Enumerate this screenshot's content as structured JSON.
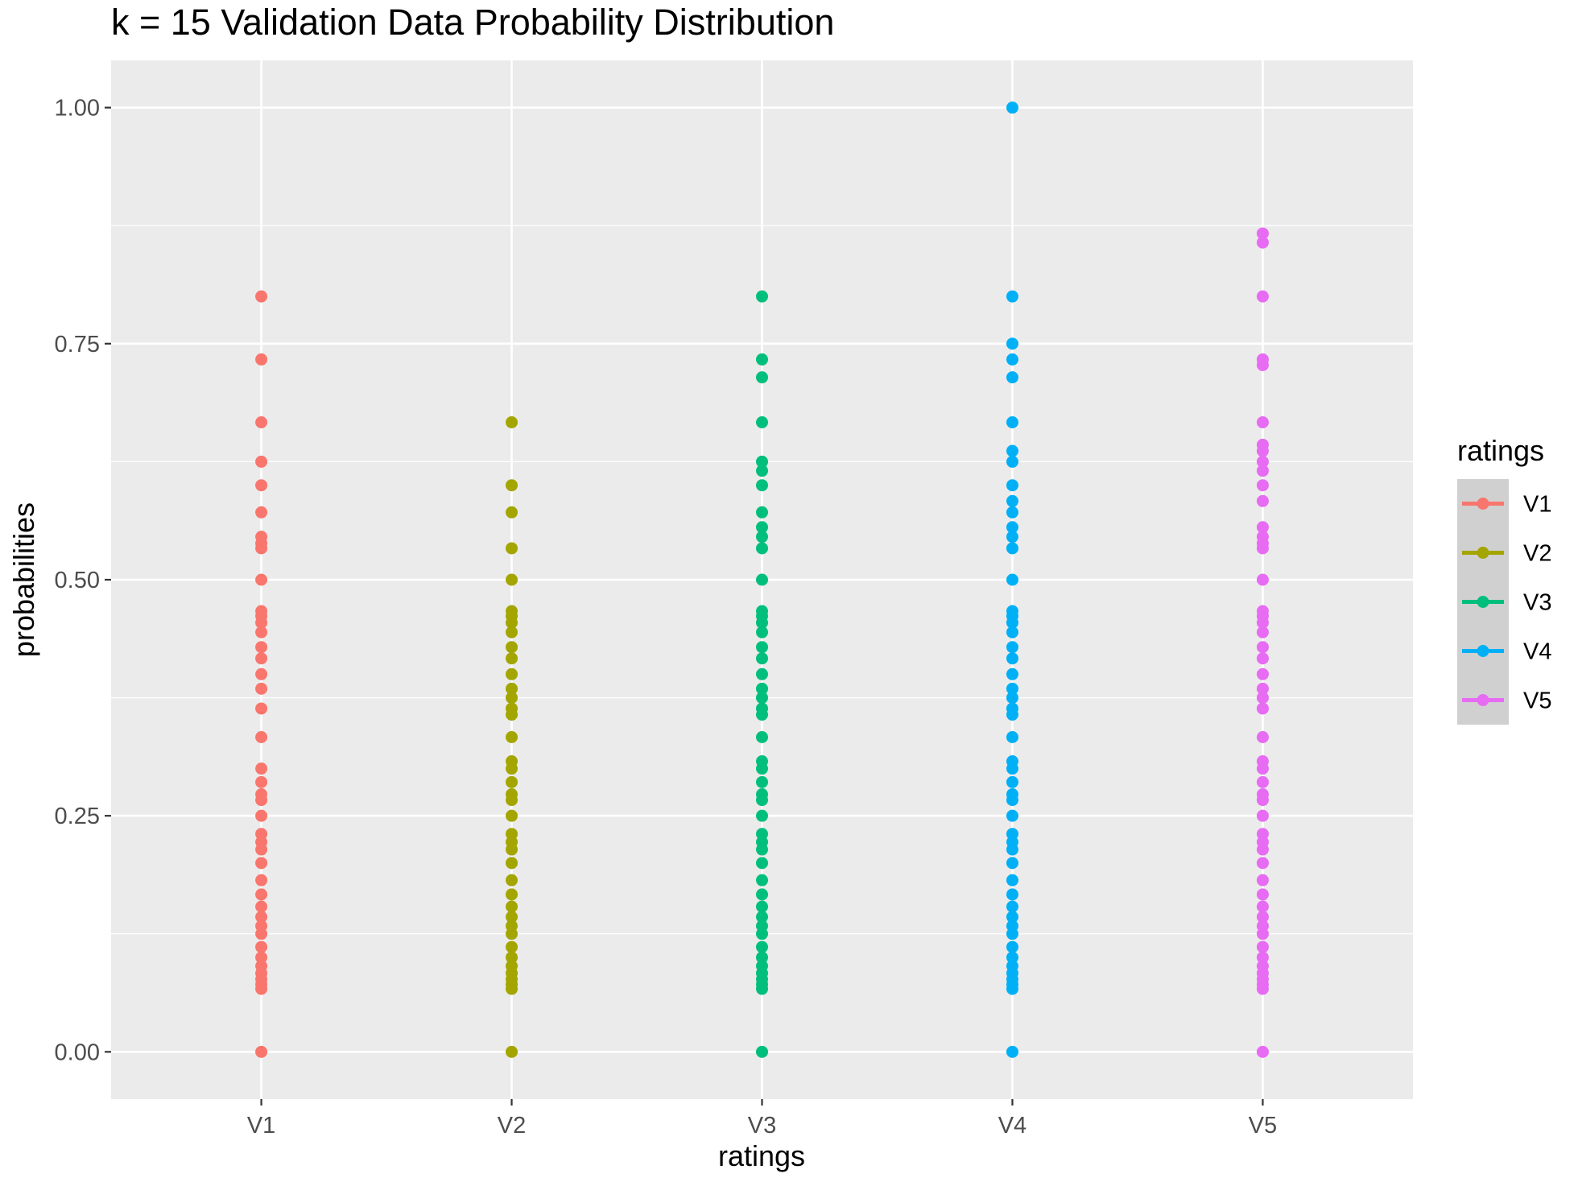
{
  "chart_data": {
    "type": "scatter",
    "title": "k = 15 Validation Data Probability Distribution",
    "xlabel": "ratings",
    "ylabel": "probabilities",
    "categories": [
      "V1",
      "V2",
      "V3",
      "V4",
      "V5"
    ],
    "ylim": [
      -0.05,
      1.05
    ],
    "yticks": [
      "0.00",
      "0.25",
      "0.50",
      "0.75",
      "1.00"
    ],
    "grid": true,
    "legend": {
      "title": "ratings",
      "position": "right"
    },
    "series": [
      {
        "name": "V1",
        "color": "#F8766D",
        "values": [
          0,
          0.0667,
          0.0714,
          0.0769,
          0.0833,
          0.0909,
          0.1,
          0.1111,
          0.125,
          0.1333,
          0.1429,
          0.1538,
          0.1667,
          0.1818,
          0.2,
          0.2143,
          0.2222,
          0.2308,
          0.25,
          0.2667,
          0.2727,
          0.2857,
          0.3,
          0.3333,
          0.3636,
          0.3846,
          0.4,
          0.4167,
          0.4286,
          0.4444,
          0.4545,
          0.4615,
          0.4667,
          0.5,
          0.5333,
          0.5385,
          0.5455,
          0.5714,
          0.6,
          0.625,
          0.6667,
          0.7333,
          0.8
        ]
      },
      {
        "name": "V2",
        "color": "#A3A500",
        "values": [
          0,
          0.0667,
          0.0714,
          0.0769,
          0.0833,
          0.0909,
          0.1,
          0.1111,
          0.125,
          0.1333,
          0.1429,
          0.1538,
          0.1667,
          0.1818,
          0.2,
          0.2143,
          0.2222,
          0.2308,
          0.25,
          0.2667,
          0.2727,
          0.2857,
          0.3,
          0.3077,
          0.3333,
          0.3571,
          0.3636,
          0.375,
          0.3846,
          0.4,
          0.4167,
          0.4286,
          0.4444,
          0.4545,
          0.4615,
          0.4667,
          0.5,
          0.5333,
          0.5714,
          0.6,
          0.6667
        ]
      },
      {
        "name": "V3",
        "color": "#00BF7D",
        "values": [
          0,
          0.0667,
          0.0714,
          0.0769,
          0.0833,
          0.0909,
          0.1,
          0.1111,
          0.125,
          0.1333,
          0.1429,
          0.1538,
          0.1667,
          0.1818,
          0.2,
          0.2143,
          0.2222,
          0.2308,
          0.25,
          0.2667,
          0.2727,
          0.2857,
          0.3,
          0.3077,
          0.3333,
          0.3571,
          0.3636,
          0.375,
          0.3846,
          0.4,
          0.4167,
          0.4286,
          0.4444,
          0.4545,
          0.4615,
          0.4667,
          0.5,
          0.5333,
          0.5455,
          0.5556,
          0.5714,
          0.6,
          0.6154,
          0.625,
          0.6667,
          0.7143,
          0.7333,
          0.8
        ]
      },
      {
        "name": "V4",
        "color": "#00B0F6",
        "values": [
          0,
          0.0667,
          0.0714,
          0.0769,
          0.0833,
          0.0909,
          0.1,
          0.1111,
          0.125,
          0.1333,
          0.1429,
          0.1538,
          0.1667,
          0.1818,
          0.2,
          0.2143,
          0.2222,
          0.2308,
          0.25,
          0.2667,
          0.2727,
          0.2857,
          0.3,
          0.3077,
          0.3333,
          0.3571,
          0.3636,
          0.375,
          0.3846,
          0.4,
          0.4167,
          0.4286,
          0.4444,
          0.4545,
          0.4615,
          0.4667,
          0.5,
          0.5333,
          0.5455,
          0.5556,
          0.5714,
          0.5833,
          0.6,
          0.625,
          0.6364,
          0.6667,
          0.7143,
          0.7333,
          0.75,
          0.8,
          1.0
        ]
      },
      {
        "name": "V5",
        "color": "#E76BF3",
        "values": [
          0,
          0.0667,
          0.0714,
          0.0769,
          0.0833,
          0.0909,
          0.1,
          0.1111,
          0.125,
          0.1333,
          0.1429,
          0.1538,
          0.1667,
          0.1818,
          0.2,
          0.2143,
          0.2222,
          0.2308,
          0.25,
          0.2667,
          0.2727,
          0.2857,
          0.3,
          0.3077,
          0.3333,
          0.3636,
          0.375,
          0.3846,
          0.4,
          0.4167,
          0.4286,
          0.4444,
          0.4545,
          0.4615,
          0.4667,
          0.5,
          0.5333,
          0.5385,
          0.5455,
          0.5556,
          0.5833,
          0.6,
          0.6154,
          0.625,
          0.6364,
          0.6429,
          0.6667,
          0.7273,
          0.7333,
          0.8,
          0.8571,
          0.8667
        ]
      }
    ]
  }
}
